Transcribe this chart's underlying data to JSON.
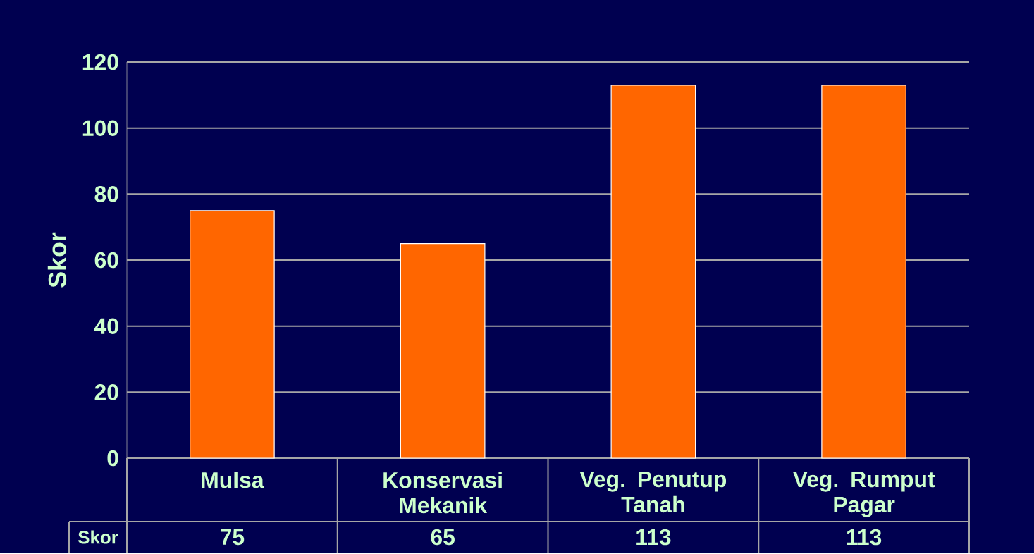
{
  "chart_data": {
    "type": "bar",
    "ylabel": "Skor",
    "categories": [
      "Mulsa",
      "Konservasi Mekanik",
      "Veg. Penutup Tanah",
      "Veg. Rumput Pagar"
    ],
    "series": [
      {
        "name": "Skor",
        "color": "#ff6600",
        "values": [
          75,
          65,
          113,
          113
        ]
      }
    ],
    "ylim": [
      0,
      120
    ],
    "yticks": [
      0,
      20,
      40,
      60,
      80,
      100,
      120
    ],
    "grid": "y",
    "data_labels": true
  }
}
